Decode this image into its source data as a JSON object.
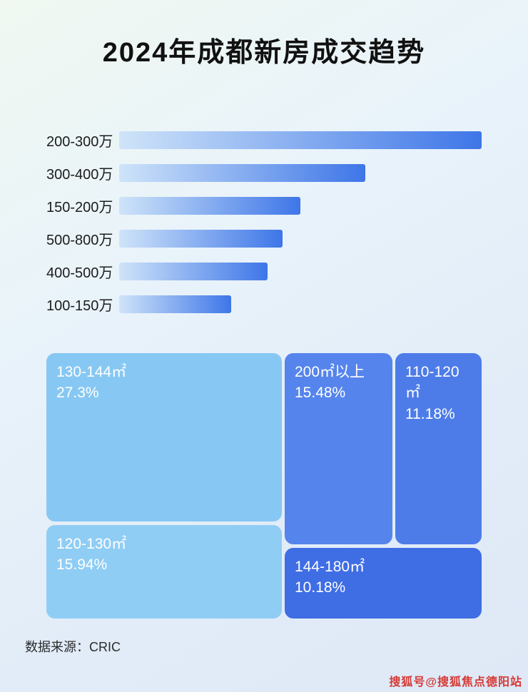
{
  "page": {
    "title": "2024年成都新房成交趋势",
    "source": "数据来源：CRIC",
    "watermark": "搜狐号@搜狐焦点德阳站"
  },
  "colors": {
    "bar_gradient_start": "#cfe4f9",
    "bar_gradient_end": "#3e76e8",
    "label_text": "#1c1c1c",
    "block_text": "#ffffff"
  },
  "chart_data": [
    {
      "type": "bar",
      "orientation": "horizontal",
      "title": "2024年成都新房成交趋势",
      "categories": [
        "200-300万",
        "300-400万",
        "150-200万",
        "500-800万",
        "400-500万",
        "100-150万"
      ],
      "values": [
        100,
        68,
        50,
        45,
        41,
        31
      ],
      "value_unit": "relative bar length (% of longest bar, no numeric axis shown)",
      "xlabel": "",
      "ylabel": "",
      "grid": false,
      "legend": false
    },
    {
      "type": "treemap",
      "items": [
        {
          "label": "130-144㎡",
          "value": 27.3,
          "display": "27.3%",
          "color": "#86c8f3"
        },
        {
          "label": "120-130㎡",
          "value": 15.94,
          "display": "15.94%",
          "color": "#8fcdf5"
        },
        {
          "label": "200㎡以上",
          "value": 15.48,
          "display": "15.48%",
          "color": "#5584ec"
        },
        {
          "label": "110-120㎡",
          "value": 11.18,
          "display": "11.18%",
          "color": "#4d7ce9"
        },
        {
          "label": "144-180㎡",
          "value": 10.18,
          "display": "10.18%",
          "color": "#3f6de4"
        }
      ]
    }
  ]
}
